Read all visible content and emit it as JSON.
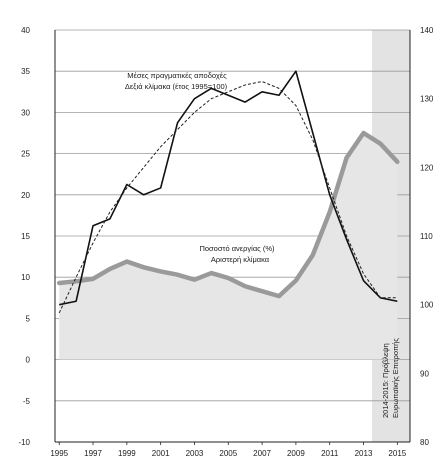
{
  "chart_data": {
    "type": "line",
    "title": "",
    "xlabel": "",
    "ylabel_left": "",
    "ylabel_right": "",
    "x_ticks": [
      1995,
      1997,
      1999,
      2001,
      2003,
      2005,
      2007,
      2009,
      2011,
      2013,
      2015
    ],
    "x_range": [
      1995,
      2015
    ],
    "y_left_range": [
      -10,
      40
    ],
    "y_left_ticks": [
      -10,
      -5,
      0,
      5,
      10,
      15,
      20,
      25,
      30,
      35,
      40
    ],
    "y_right_range": [
      80,
      140
    ],
    "y_right_ticks": [
      80,
      90,
      100,
      110,
      120,
      130,
      140
    ],
    "grid": true,
    "forecast_region": {
      "from": 2013.5,
      "to": 2015.5
    },
    "annotations": {
      "wages_line1": "Μέσες πραγματικές αποδοχές",
      "wages_line2": "Δεξιά κλίμακα (έτος 1995=100)",
      "unemp_line1": "Ποσοστό ανεργίας (%)",
      "unemp_line2": "Αριστερή κλίμακα",
      "forecast_line1": "2014-2015: Πρόβλεψη",
      "forecast_line2": "Ευρωπαϊκής Επιτροπής"
    },
    "series": [
      {
        "axis": "left",
        "style": "thick-grey-area",
        "color": "#9a9a9a",
        "x": [
          1995,
          1996,
          1997,
          1998,
          1999,
          2000,
          2001,
          2002,
          2003,
          2004,
          2005,
          2006,
          2007,
          2008,
          2009,
          2010,
          2011,
          2012,
          2013,
          2014,
          2015
        ],
        "values": [
          9.3,
          9.5,
          9.8,
          11.0,
          11.9,
          11.2,
          10.7,
          10.3,
          9.7,
          10.5,
          9.9,
          8.9,
          8.3,
          7.7,
          9.6,
          12.7,
          17.9,
          24.5,
          27.5,
          26.2,
          24.0
        ]
      },
      {
        "axis": "right",
        "style": "solid-black",
        "color": "#111111",
        "x": [
          1995,
          1996,
          1997,
          1998,
          1999,
          2000,
          2001,
          2002,
          2003,
          2004,
          2005,
          2006,
          2007,
          2008,
          2009,
          2010,
          2011,
          2012,
          2013,
          2014,
          2015
        ],
        "values": [
          100.0,
          100.5,
          111.5,
          112.5,
          117.5,
          116.0,
          117.0,
          126.5,
          130.0,
          131.5,
          130.5,
          129.5,
          131.0,
          130.5,
          134.0,
          125.0,
          116.0,
          109.5,
          103.5,
          101.0,
          100.5
        ]
      },
      {
        "axis": "right",
        "style": "dashed-trend",
        "color": "#222222",
        "x": [
          1995,
          1996,
          1997,
          1998,
          1999,
          2000,
          2001,
          2002,
          2003,
          2004,
          2005,
          2006,
          2007,
          2008,
          2009,
          2010,
          2011,
          2012,
          2013,
          2014,
          2015
        ],
        "values": [
          98.8,
          104.0,
          109.0,
          113.5,
          117.0,
          120.0,
          123.0,
          125.5,
          128.0,
          130.0,
          131.0,
          132.0,
          132.5,
          131.5,
          129.0,
          124.0,
          117.0,
          110.0,
          104.5,
          101.0,
          101.0
        ]
      }
    ]
  }
}
